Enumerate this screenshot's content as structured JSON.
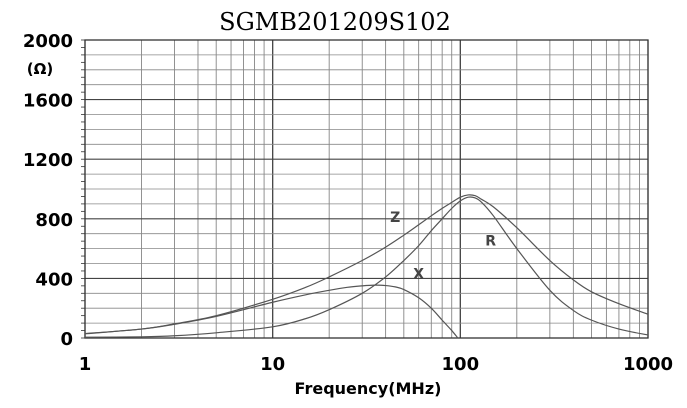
{
  "chart_data": {
    "type": "line",
    "title": "SGMB201209S102",
    "xlabel": "Frequency(MHz)",
    "ylabel": "(Ω)",
    "xscale": "log",
    "xlim": [
      1,
      1000
    ],
    "ylim": [
      0,
      2000
    ],
    "x_ticks": [
      1,
      10,
      100,
      1000
    ],
    "x_tick_labels": [
      "1",
      "10",
      "100",
      "1000"
    ],
    "y_ticks": [
      0,
      400,
      800,
      1200,
      1600,
      2000
    ],
    "y_tick_labels": [
      "0",
      "400",
      "800",
      "1200",
      "1600",
      "2000"
    ],
    "grid": true,
    "legend": "none",
    "series": [
      {
        "name": "Z",
        "color": "#555555",
        "x": [
          1,
          2,
          3,
          5,
          10,
          15,
          20,
          30,
          40,
          50,
          60,
          70,
          80,
          90,
          100,
          110,
          120,
          130,
          150,
          200,
          300,
          400,
          500,
          700,
          1000
        ],
        "values": [
          30,
          60,
          95,
          150,
          260,
          340,
          410,
          520,
          610,
          690,
          760,
          820,
          870,
          910,
          945,
          960,
          955,
          930,
          880,
          740,
          520,
          390,
          310,
          230,
          160
        ]
      },
      {
        "name": "R",
        "color": "#555555",
        "x": [
          1,
          2,
          3,
          5,
          10,
          15,
          20,
          30,
          40,
          50,
          60,
          70,
          80,
          90,
          100,
          110,
          120,
          130,
          150,
          200,
          300,
          400,
          500,
          700,
          1000
        ],
        "values": [
          5,
          8,
          15,
          35,
          75,
          130,
          190,
          300,
          410,
          520,
          620,
          720,
          800,
          870,
          920,
          945,
          940,
          910,
          820,
          600,
          320,
          185,
          120,
          60,
          20
        ]
      },
      {
        "name": "X",
        "color": "#555555",
        "x": [
          1,
          2,
          3,
          5,
          10,
          15,
          20,
          25,
          30,
          35,
          40,
          45,
          50,
          60,
          70,
          80,
          90,
          97
        ],
        "values": [
          28,
          60,
          92,
          145,
          240,
          290,
          320,
          340,
          350,
          355,
          352,
          343,
          325,
          270,
          200,
          120,
          50,
          0
        ]
      }
    ],
    "annotations": [
      {
        "text": "Z",
        "x": 45,
        "y": 780
      },
      {
        "text": "X",
        "x": 60,
        "y": 400
      },
      {
        "text": "R",
        "x": 145,
        "y": 620
      }
    ]
  }
}
